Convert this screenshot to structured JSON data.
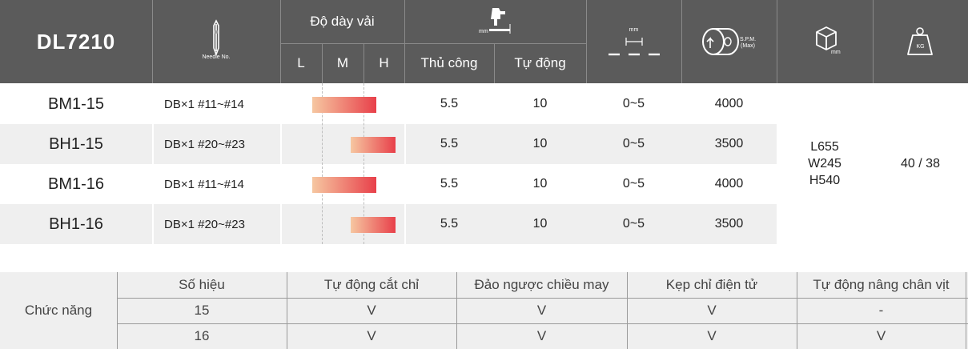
{
  "header": {
    "model_title": "DL7210",
    "needle_label": "Needle No.",
    "thickness_label": "Độ dày vải",
    "thickness_levels": [
      "L",
      "M",
      "H"
    ],
    "lift_unit": "mm",
    "lift_manual": "Thủ công",
    "lift_auto": "Tự động",
    "stitch_unit": "mm",
    "speed_line1": "S.P.M.",
    "speed_line2": "(Max)",
    "size_unit": "mm",
    "weight_unit": "KG",
    "icons": [
      "needle-icon",
      "presser-foot-icon",
      "stitch-length-icon",
      "speed-icon",
      "box-icon",
      "weight-icon"
    ]
  },
  "rows": [
    {
      "model": "BM1-15",
      "needle": "DB×1  #11~#14",
      "thickness": "L-M",
      "manual": "5.5",
      "auto": "10",
      "stitch": "0~5",
      "speed": "4000"
    },
    {
      "model": "BH1-15",
      "needle": "DB×1  #20~#23",
      "thickness": "M-H",
      "manual": "5.5",
      "auto": "10",
      "stitch": "0~5",
      "speed": "3500"
    },
    {
      "model": "BM1-16",
      "needle": "DB×1  #11~#14",
      "thickness": "L-M",
      "manual": "5.5",
      "auto": "10",
      "stitch": "0~5",
      "speed": "4000"
    },
    {
      "model": "BH1-16",
      "needle": "DB×1  #20~#23",
      "thickness": "M-H",
      "manual": "5.5",
      "auto": "10",
      "stitch": "0~5",
      "speed": "3500"
    }
  ],
  "dimensions": {
    "l": "L655",
    "w": "W245",
    "h": "H540"
  },
  "weight": "40 / 38",
  "features": {
    "row_label": "Chức năng",
    "headers": [
      "Số hiệu",
      "Tự động cắt chỉ",
      "Đảo ngược chiều may",
      "Kẹp chỉ điện tử",
      "Tự động nâng chân vịt"
    ],
    "rows": [
      [
        "15",
        "V",
        "V",
        "V",
        "-"
      ],
      [
        "16",
        "V",
        "V",
        "V",
        "V"
      ]
    ]
  },
  "colors": {
    "header_bg": "#5b5b5b",
    "band_bg": "#efefef",
    "gradient_start": "#f6c7a1",
    "gradient_end": "#e8404a"
  }
}
